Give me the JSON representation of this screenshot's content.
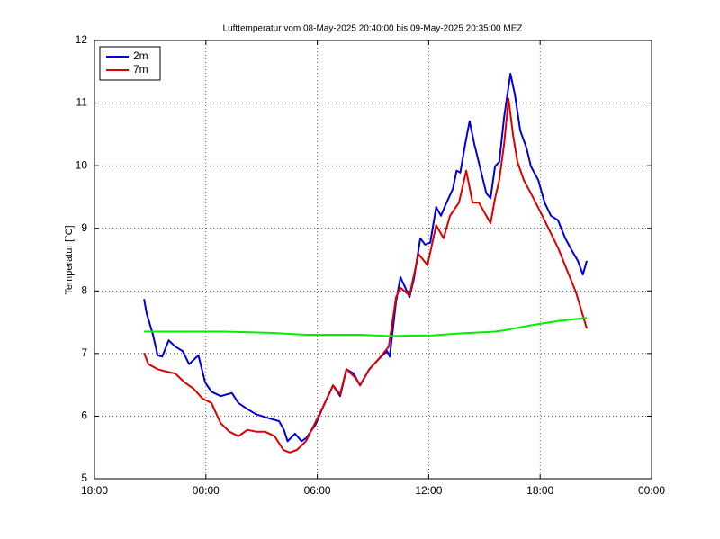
{
  "chart_data": {
    "type": "line",
    "title": "Lufttemperatur vom 08-May-2025 20:40:00 bis 09-May-2025 20:35:00 MEZ",
    "y_label": "Temperatur [°C]",
    "xlim": [
      18,
      48
    ],
    "xticks": [
      {
        "value": 18,
        "label": "18:00"
      },
      {
        "value": 24,
        "label": "00:00"
      },
      {
        "value": 30,
        "label": "06:00"
      },
      {
        "value": 36,
        "label": "12:00"
      },
      {
        "value": 42,
        "label": "18:00"
      },
      {
        "value": 48,
        "label": "00:00"
      }
    ],
    "ylim": [
      5,
      12
    ],
    "yticks": [
      5,
      6,
      7,
      8,
      9,
      10,
      11,
      12
    ],
    "grid": true,
    "legend": "northwest",
    "series": [
      {
        "name": "2m",
        "color": "#0000dd",
        "x": [
          20.67,
          20.81,
          21.15,
          21.4,
          21.65,
          22.0,
          22.35,
          22.75,
          23.1,
          23.6,
          23.96,
          24.3,
          24.8,
          25.4,
          25.75,
          26.25,
          26.7,
          27.45,
          27.94,
          28.2,
          28.4,
          28.8,
          29.15,
          29.4,
          29.9,
          30.36,
          30.85,
          31.23,
          31.57,
          31.96,
          32.3,
          32.8,
          33.27,
          33.75,
          33.9,
          34.24,
          34.48,
          34.97,
          35.2,
          35.55,
          35.8,
          36.08,
          36.4,
          36.66,
          36.9,
          37.3,
          37.5,
          37.7,
          37.97,
          38.2,
          38.45,
          38.75,
          39.1,
          39.33,
          39.57,
          39.8,
          40.06,
          40.4,
          40.64,
          40.93,
          41.27,
          41.5,
          41.9,
          42.24,
          42.58,
          42.96,
          43.35,
          43.7,
          44.03,
          44.3,
          44.51
        ],
        "values": [
          7.87,
          7.64,
          7.3,
          6.97,
          6.95,
          7.21,
          7.11,
          7.04,
          6.83,
          6.97,
          6.54,
          6.39,
          6.32,
          6.37,
          6.21,
          6.11,
          6.03,
          5.96,
          5.92,
          5.78,
          5.6,
          5.72,
          5.6,
          5.65,
          5.86,
          6.18,
          6.49,
          6.32,
          6.75,
          6.68,
          6.49,
          6.75,
          6.9,
          7.04,
          6.95,
          7.83,
          8.22,
          7.9,
          8.19,
          8.84,
          8.74,
          8.77,
          9.34,
          9.2,
          9.37,
          9.63,
          9.92,
          9.89,
          10.35,
          10.71,
          10.35,
          9.99,
          9.56,
          9.48,
          9.99,
          10.06,
          10.78,
          11.47,
          11.14,
          10.56,
          10.28,
          9.99,
          9.77,
          9.41,
          9.2,
          9.13,
          8.84,
          8.65,
          8.48,
          8.26,
          8.48
        ]
      },
      {
        "name": "7m",
        "color": "#dd0000",
        "x": [
          20.67,
          20.91,
          21.4,
          21.88,
          22.35,
          22.85,
          23.33,
          23.82,
          24.3,
          24.79,
          25.27,
          25.76,
          26.24,
          26.73,
          27.2,
          27.7,
          28.18,
          28.52,
          28.9,
          29.39,
          29.88,
          30.36,
          30.85,
          31.23,
          31.57,
          32.06,
          32.3,
          32.8,
          33.27,
          33.85,
          34.24,
          34.48,
          34.97,
          35.45,
          35.93,
          36.4,
          36.8,
          37.15,
          37.63,
          38.02,
          38.36,
          38.7,
          39.1,
          39.33,
          39.57,
          39.8,
          40.06,
          40.3,
          40.54,
          40.78,
          41.12,
          41.5,
          42.0,
          42.48,
          42.96,
          43.45,
          43.93,
          44.51
        ],
        "values": [
          7.01,
          6.83,
          6.75,
          6.71,
          6.68,
          6.54,
          6.44,
          6.28,
          6.21,
          5.89,
          5.75,
          5.68,
          5.78,
          5.75,
          5.75,
          5.68,
          5.46,
          5.42,
          5.46,
          5.6,
          5.89,
          6.18,
          6.49,
          6.35,
          6.75,
          6.61,
          6.49,
          6.75,
          6.9,
          7.11,
          7.9,
          8.05,
          7.93,
          8.59,
          8.41,
          9.05,
          8.84,
          9.2,
          9.41,
          9.92,
          9.41,
          9.41,
          9.2,
          9.08,
          9.48,
          9.77,
          10.35,
          11.07,
          10.49,
          10.06,
          9.77,
          9.56,
          9.27,
          8.98,
          8.69,
          8.33,
          7.98,
          7.4
        ]
      },
      {
        "color": "#00ee00",
        "x": [
          20.67,
          25.03,
          27.45,
          29.39,
          32.3,
          33.75,
          36.18,
          37.63,
          39.57,
          40.06,
          41.5,
          42.96,
          44.51
        ],
        "values": [
          7.35,
          7.35,
          7.33,
          7.3,
          7.3,
          7.28,
          7.29,
          7.32,
          7.35,
          7.37,
          7.45,
          7.52,
          7.57
        ]
      }
    ]
  }
}
